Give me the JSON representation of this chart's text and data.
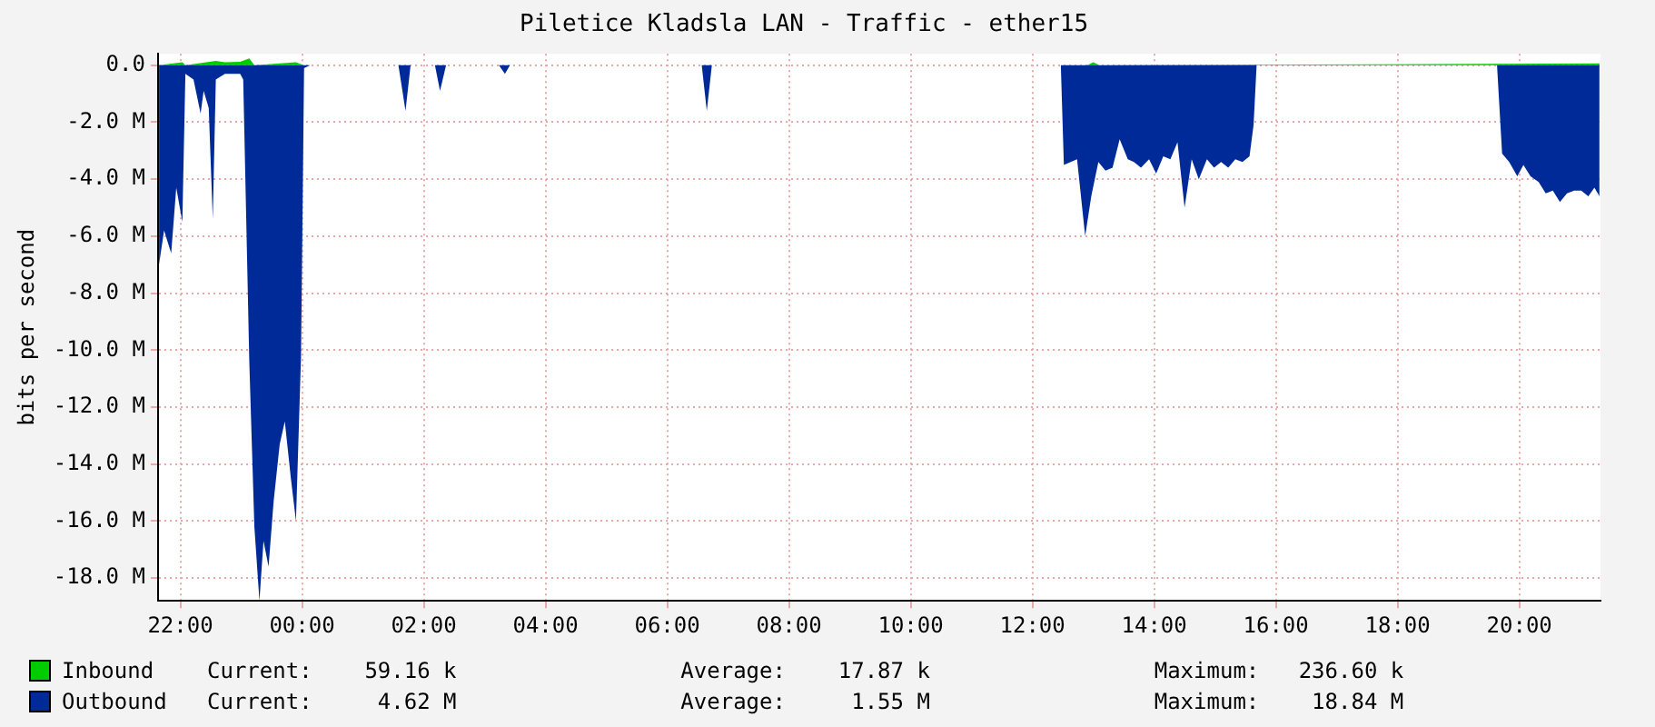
{
  "chart_data": {
    "type": "area",
    "title": "Piletice Kladsla LAN - Traffic - ether15",
    "ylabel": "bits per second",
    "xlim": [
      "--01-01T21:38",
      "--01-02T21:20"
    ],
    "xticks": [
      {
        "value": "--01-01T22:00",
        "label": "22:00"
      },
      {
        "value": "--01-02T00:00",
        "label": "00:00"
      },
      {
        "value": "--01-02T02:00",
        "label": "02:00"
      },
      {
        "value": "--01-02T04:00",
        "label": "04:00"
      },
      {
        "value": "--01-02T06:00",
        "label": "06:00"
      },
      {
        "value": "--01-02T08:00",
        "label": "08:00"
      },
      {
        "value": "--01-02T10:00",
        "label": "10:00"
      },
      {
        "value": "--01-02T12:00",
        "label": "12:00"
      },
      {
        "value": "--01-02T14:00",
        "label": "14:00"
      },
      {
        "value": "--01-02T16:00",
        "label": "16:00"
      },
      {
        "value": "--01-02T18:00",
        "label": "18:00"
      },
      {
        "value": "--01-02T20:00",
        "label": "20:00"
      }
    ],
    "ylim": [
      -18.8,
      0.4
    ],
    "yticks": [
      {
        "value": 0,
        "label": "0.0"
      },
      {
        "value": -2,
        "label": "-2.0 M"
      },
      {
        "value": -4,
        "label": "-4.0 M"
      },
      {
        "value": -6,
        "label": "-6.0 M"
      },
      {
        "value": -8,
        "label": "-8.0 M"
      },
      {
        "value": -10,
        "label": "-10.0 M"
      },
      {
        "value": -12,
        "label": "-12.0 M"
      },
      {
        "value": -14,
        "label": "-14.0 M"
      },
      {
        "value": -16,
        "label": "-16.0 M"
      },
      {
        "value": -18,
        "label": "-18.0 M"
      }
    ],
    "grid": true,
    "legend": "bottom",
    "series": [
      {
        "name": "Inbound",
        "color": "#00cc00",
        "x": [
          "--01-01T21:39",
          "--01-01T22:02",
          "--01-01T22:05",
          "--01-01T22:35",
          "--01-01T22:44",
          "--01-01T22:59",
          "--01-01T23:08",
          "--01-01T23:13",
          "--01-01T23:54",
          "--01-02T00:02",
          "--01-02T12:54",
          "--01-02T13:00",
          "--01-02T13:06",
          "--01-02T21:19"
        ],
        "values": [
          0,
          0.1,
          0,
          0.15,
          0.1,
          0.12,
          0.24,
          0,
          0.1,
          0,
          0,
          0.1,
          0,
          0.06
        ]
      },
      {
        "name": "Outbound",
        "color": "#002a97",
        "x": [
          "--01-01T21:39",
          "--01-01T21:44",
          "--01-01T21:51",
          "--01-01T21:56",
          "--01-01T22:02",
          "--01-01T22:05",
          "--01-01T22:13",
          "--01-01T22:20",
          "--01-01T22:23",
          "--01-01T22:28",
          "--01-01T22:32",
          "--01-01T22:35",
          "--01-01T22:44",
          "--01-01T22:59",
          "--01-01T23:02",
          "--01-01T23:08",
          "--01-01T23:13",
          "--01-01T23:18",
          "--01-01T23:22",
          "--01-01T23:27",
          "--01-01T23:32",
          "--01-01T23:38",
          "--01-01T23:43",
          "--01-01T23:49",
          "--01-01T23:54",
          "--01-01T23:59",
          "--01-02T00:02",
          "--01-02T00:08",
          "--01-02T01:35",
          "--01-02T01:42",
          "--01-02T01:47",
          "--01-02T02:11",
          "--01-02T02:16",
          "--01-02T02:22",
          "--01-02T03:14",
          "--01-02T03:20",
          "--01-02T03:25",
          "--01-02T06:34",
          "--01-02T06:39",
          "--01-02T06:44",
          "--01-02T12:28",
          "--01-02T12:31",
          "--01-02T12:44",
          "--01-02T12:52",
          "--01-02T12:58",
          "--01-02T13:05",
          "--01-02T13:12",
          "--01-02T13:19",
          "--01-02T13:26",
          "--01-02T13:34",
          "--01-02T13:40",
          "--01-02T13:47",
          "--01-02T13:55",
          "--01-02T14:02",
          "--01-02T14:09",
          "--01-02T14:16",
          "--01-02T14:23",
          "--01-02T14:30",
          "--01-02T14:37",
          "--01-02T14:44",
          "--01-02T14:52",
          "--01-02T14:59",
          "--01-02T15:06",
          "--01-02T15:13",
          "--01-02T15:20",
          "--01-02T15:27",
          "--01-02T15:34",
          "--01-02T15:38",
          "--01-02T15:41",
          "--01-02T19:38",
          "--01-02T19:43",
          "--01-02T19:50",
          "--01-02T19:58",
          "--01-02T20:04",
          "--01-02T20:11",
          "--01-02T20:19",
          "--01-02T20:26",
          "--01-02T20:33",
          "--01-02T20:40",
          "--01-02T20:47",
          "--01-02T20:54",
          "--01-02T21:01",
          "--01-02T21:08",
          "--01-02T21:14",
          "--01-02T21:19"
        ],
        "values": [
          -7.0,
          -5.8,
          -6.6,
          -4.3,
          -5.5,
          -0.3,
          -0.5,
          -1.7,
          -0.9,
          -1.5,
          -5.4,
          -0.5,
          -0.3,
          -0.3,
          -0.5,
          -10.4,
          -16.2,
          -18.8,
          -16.7,
          -17.6,
          -15.3,
          -13.3,
          -12.5,
          -14.5,
          -16.0,
          -10.2,
          -0.1,
          0,
          0,
          -1.6,
          0,
          0,
          -0.9,
          0,
          0,
          -0.3,
          0,
          0,
          -1.6,
          0,
          0,
          -3.5,
          -3.3,
          -6.0,
          -4.6,
          -3.4,
          -3.7,
          -3.6,
          -2.6,
          -3.3,
          -3.4,
          -3.6,
          -3.3,
          -3.8,
          -3.2,
          -3.3,
          -2.7,
          -5.0,
          -3.3,
          -4.0,
          -3.3,
          -3.6,
          -3.4,
          -3.6,
          -3.3,
          -3.4,
          -3.2,
          -2.1,
          0,
          0,
          -3.1,
          -3.4,
          -3.9,
          -3.5,
          -3.9,
          -4.1,
          -4.5,
          -4.4,
          -4.8,
          -4.5,
          -4.4,
          -4.4,
          -4.6,
          -4.3,
          -4.6
        ]
      }
    ],
    "annotations": [
      "Current:    59.16 k",
      "Average:    17.87 k",
      "Maximum:   236.60 k",
      "Current:     4.62 M",
      "Average:     1.55 M",
      "Maximum:    18.84 M"
    ]
  }
}
